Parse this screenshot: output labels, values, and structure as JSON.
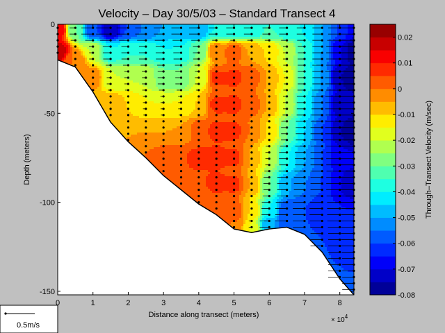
{
  "chart_data": {
    "type": "heatmap",
    "title": "Velocity – Day 30/5/03 – Standard Transect 4",
    "xlabel": "Distance along transect (meters)",
    "ylabel": "Depth (meters)",
    "x_multiplier_label": "× 10",
    "x_multiplier_exponent": "4",
    "xlim": [
      0,
      8.4
    ],
    "ylim": [
      -152,
      0
    ],
    "x_ticks": [
      {
        "value": 0,
        "label": "0"
      },
      {
        "value": 1,
        "label": "1"
      },
      {
        "value": 2,
        "label": "2"
      },
      {
        "value": 3,
        "label": "3"
      },
      {
        "value": 4,
        "label": "4"
      },
      {
        "value": 5,
        "label": "5"
      },
      {
        "value": 6,
        "label": "6"
      },
      {
        "value": 7,
        "label": "7"
      },
      {
        "value": 8,
        "label": "8"
      }
    ],
    "y_ticks": [
      {
        "value": 0,
        "label": "0"
      },
      {
        "value": -50,
        "label": "-50"
      },
      {
        "value": -100,
        "label": "-100"
      },
      {
        "value": -150,
        "label": "-150"
      }
    ],
    "bottom_profile": [
      [
        0,
        -20
      ],
      [
        0.5,
        -24
      ],
      [
        1,
        -38
      ],
      [
        1.5,
        -55
      ],
      [
        2,
        -66
      ],
      [
        2.5,
        -75
      ],
      [
        3,
        -85
      ],
      [
        3.5,
        -93
      ],
      [
        4,
        -101
      ],
      [
        4.5,
        -107
      ],
      [
        5,
        -115
      ],
      [
        5.5,
        -117
      ],
      [
        6,
        -115
      ],
      [
        6.5,
        -114
      ],
      [
        7,
        -118
      ],
      [
        7.5,
        -128
      ],
      [
        8,
        -143
      ],
      [
        8.4,
        -152
      ]
    ],
    "profile_stations_x": [
      0,
      0.5,
      1,
      1.5,
      2,
      2.5,
      3,
      3.5,
      4,
      4.5,
      5,
      5.5,
      6,
      6.5,
      7,
      7.5,
      8,
      8.4
    ],
    "color_scale": {
      "label": "Through–Transect Velocity (m/sec)",
      "min": -0.08,
      "max": 0.025,
      "step": 0.005,
      "ticks": [
        {
          "value": 0.02,
          "label": "0.02"
        },
        {
          "value": 0.01,
          "label": "0.01"
        },
        {
          "value": 0,
          "label": "0"
        },
        {
          "value": -0.01,
          "label": "-0.01"
        },
        {
          "value": -0.02,
          "label": "-0.02"
        },
        {
          "value": -0.03,
          "label": "-0.03"
        },
        {
          "value": -0.04,
          "label": "-0.04"
        },
        {
          "value": -0.05,
          "label": "-0.05"
        },
        {
          "value": -0.06,
          "label": "-0.06"
        },
        {
          "value": -0.07,
          "label": "-0.07"
        },
        {
          "value": -0.08,
          "label": "-0.08"
        }
      ]
    },
    "field_samples": [
      [
        0,
        -3,
        0.015
      ],
      [
        0,
        -15,
        0.018
      ],
      [
        0.5,
        -3,
        -0.03
      ],
      [
        0.5,
        -20,
        0.0
      ],
      [
        1,
        -3,
        -0.06
      ],
      [
        1,
        -15,
        -0.02
      ],
      [
        1,
        -30,
        0.0
      ],
      [
        1.5,
        -3,
        -0.075
      ],
      [
        1.5,
        -15,
        -0.04
      ],
      [
        1.5,
        -30,
        -0.02
      ],
      [
        1.5,
        -45,
        -0.005
      ],
      [
        2,
        -3,
        -0.06
      ],
      [
        2,
        -15,
        -0.035
      ],
      [
        2,
        -30,
        -0.02
      ],
      [
        2,
        -45,
        -0.01
      ],
      [
        2,
        -60,
        -0.005
      ],
      [
        2.5,
        -3,
        -0.055
      ],
      [
        2.5,
        -15,
        -0.035
      ],
      [
        2.5,
        -30,
        -0.02
      ],
      [
        2.5,
        -45,
        -0.015
      ],
      [
        2.5,
        -60,
        -0.005
      ],
      [
        2.5,
        -72,
        0.0
      ],
      [
        3,
        -3,
        -0.05
      ],
      [
        3,
        -15,
        -0.04
      ],
      [
        3,
        -30,
        -0.03
      ],
      [
        3,
        -45,
        -0.015
      ],
      [
        3,
        -60,
        -0.005
      ],
      [
        3,
        -75,
        0.003
      ],
      [
        3.5,
        -3,
        -0.05
      ],
      [
        3.5,
        -15,
        -0.04
      ],
      [
        3.5,
        -30,
        -0.03
      ],
      [
        3.5,
        -45,
        -0.015
      ],
      [
        3.5,
        -60,
        -0.005
      ],
      [
        3.5,
        -75,
        0.005
      ],
      [
        3.5,
        -88,
        0.005
      ],
      [
        4,
        -3,
        -0.05
      ],
      [
        4,
        -15,
        -0.03
      ],
      [
        4,
        -30,
        -0.02
      ],
      [
        4,
        -45,
        -0.01
      ],
      [
        4,
        -60,
        0.003
      ],
      [
        4,
        -75,
        0.006
      ],
      [
        4,
        -90,
        0.005
      ],
      [
        4,
        -98,
        0.0
      ],
      [
        4.5,
        -3,
        -0.04
      ],
      [
        4.5,
        -15,
        0.0
      ],
      [
        4.5,
        -30,
        0.006
      ],
      [
        4.5,
        -45,
        0.006
      ],
      [
        4.5,
        -60,
        0.006
      ],
      [
        4.5,
        -75,
        0.006
      ],
      [
        4.5,
        -90,
        0.006
      ],
      [
        4.5,
        -104,
        0.0
      ],
      [
        5,
        -3,
        -0.04
      ],
      [
        5,
        -15,
        0.003
      ],
      [
        5,
        -30,
        0.006
      ],
      [
        5,
        -45,
        0.006
      ],
      [
        5,
        -60,
        0.006
      ],
      [
        5,
        -75,
        0.006
      ],
      [
        5,
        -90,
        0.006
      ],
      [
        5,
        -105,
        0.005
      ],
      [
        5,
        -113,
        0.0
      ],
      [
        5.5,
        -3,
        -0.04
      ],
      [
        5.5,
        -15,
        -0.005
      ],
      [
        5.5,
        -30,
        0.003
      ],
      [
        5.5,
        -45,
        0.003
      ],
      [
        5.5,
        -60,
        0.0
      ],
      [
        5.5,
        -75,
        -0.005
      ],
      [
        5.5,
        -90,
        -0.005
      ],
      [
        5.5,
        -105,
        -0.01
      ],
      [
        5.5,
        -115,
        -0.015
      ],
      [
        6,
        -3,
        -0.035
      ],
      [
        6,
        -15,
        -0.01
      ],
      [
        6,
        -30,
        -0.005
      ],
      [
        6,
        -45,
        -0.005
      ],
      [
        6,
        -60,
        -0.01
      ],
      [
        6,
        -75,
        -0.02
      ],
      [
        6,
        -90,
        -0.03
      ],
      [
        6,
        -105,
        -0.04
      ],
      [
        6,
        -113,
        -0.05
      ],
      [
        6.5,
        -3,
        -0.04
      ],
      [
        6.5,
        -15,
        -0.02
      ],
      [
        6.5,
        -30,
        -0.015
      ],
      [
        6.5,
        -45,
        -0.02
      ],
      [
        6.5,
        -60,
        -0.03
      ],
      [
        6.5,
        -75,
        -0.04
      ],
      [
        6.5,
        -90,
        -0.05
      ],
      [
        6.5,
        -105,
        -0.06
      ],
      [
        6.5,
        -112,
        -0.06
      ],
      [
        7,
        -3,
        -0.04
      ],
      [
        7,
        -15,
        -0.035
      ],
      [
        7,
        -30,
        -0.035
      ],
      [
        7,
        -45,
        -0.04
      ],
      [
        7,
        -60,
        -0.045
      ],
      [
        7,
        -75,
        -0.05
      ],
      [
        7,
        -90,
        -0.055
      ],
      [
        7,
        -105,
        -0.06
      ],
      [
        7,
        -116,
        -0.06
      ],
      [
        7.5,
        -3,
        -0.05
      ],
      [
        7.5,
        -15,
        -0.05
      ],
      [
        7.5,
        -30,
        -0.05
      ],
      [
        7.5,
        -45,
        -0.055
      ],
      [
        7.5,
        -60,
        -0.06
      ],
      [
        7.5,
        -75,
        -0.06
      ],
      [
        7.5,
        -90,
        -0.06
      ],
      [
        7.5,
        -105,
        -0.065
      ],
      [
        7.5,
        -120,
        -0.06
      ],
      [
        8,
        -3,
        -0.06
      ],
      [
        8,
        -15,
        -0.07
      ],
      [
        8,
        -30,
        -0.075
      ],
      [
        8,
        -45,
        -0.075
      ],
      [
        8,
        -60,
        -0.075
      ],
      [
        8,
        -75,
        -0.07
      ],
      [
        8,
        -90,
        -0.07
      ],
      [
        8,
        -105,
        -0.065
      ],
      [
        8,
        -120,
        -0.06
      ],
      [
        8,
        -135,
        -0.06
      ],
      [
        8.4,
        -3,
        -0.07
      ],
      [
        8.4,
        -15,
        -0.08
      ],
      [
        8.4,
        -30,
        -0.08
      ],
      [
        8.4,
        -60,
        -0.08
      ],
      [
        8.4,
        -90,
        -0.075
      ],
      [
        8.4,
        -120,
        -0.065
      ],
      [
        8.4,
        -148,
        -0.06
      ]
    ],
    "vector_key": {
      "label": "0.5m/s"
    },
    "grid": false
  }
}
